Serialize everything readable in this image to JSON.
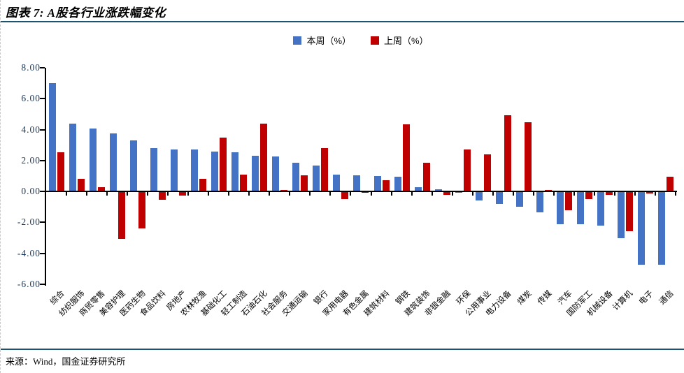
{
  "page": {
    "title": "图表 7: A股各行业涨跌幅变化",
    "source": "来源：Wind，国金证券研究所"
  },
  "chart_data": {
    "type": "bar",
    "title": "A股各行业涨跌幅变化",
    "categories": [
      "综合",
      "纺织服饰",
      "商贸零售",
      "美容护理",
      "医药生物",
      "食品饮料",
      "房地产",
      "农林牧渔",
      "基础化工",
      "轻工制造",
      "石油石化",
      "社会服务",
      "交通运输",
      "银行",
      "家用电器",
      "有色金属",
      "建筑材料",
      "钢铁",
      "建筑装饰",
      "非银金融",
      "环保",
      "公用事业",
      "电力设备",
      "煤炭",
      "传媒",
      "汽车",
      "国防军工",
      "机械设备",
      "计算机",
      "电子",
      "通信"
    ],
    "series": [
      {
        "name": "本周（%）",
        "color": "#4472C4",
        "values": [
          7.0,
          4.4,
          4.05,
          3.75,
          3.3,
          2.8,
          2.7,
          2.7,
          2.6,
          2.55,
          2.3,
          2.25,
          1.85,
          1.7,
          1.1,
          1.05,
          1.0,
          0.95,
          0.3,
          0.15,
          -0.1,
          -0.6,
          -0.8,
          -1.0,
          -1.35,
          -2.1,
          -2.1,
          -2.2,
          -3.0,
          -4.75,
          -4.75
        ]
      },
      {
        "name": "上周（%）",
        "color": "#C00000",
        "values": [
          2.55,
          0.8,
          0.3,
          -3.05,
          -2.4,
          -0.55,
          -0.25,
          0.8,
          3.5,
          1.1,
          4.4,
          0.1,
          1.05,
          2.8,
          -0.5,
          -0.1,
          0.75,
          4.35,
          1.85,
          -0.2,
          2.7,
          2.4,
          4.95,
          4.5,
          0.1,
          -1.2,
          -0.5,
          -0.2,
          -2.55,
          -0.15,
          0.95
        ]
      }
    ],
    "ylim": [
      -6,
      8
    ],
    "yticks": [
      8,
      6,
      4,
      2,
      0,
      -2,
      -4,
      -6
    ],
    "ytick_labels": [
      "8.00",
      "6.00",
      "4.00",
      "2.00",
      "0.00",
      "-2.00",
      "-4.00",
      "-6.00"
    ],
    "xlabel": "",
    "ylabel": "",
    "grid": false,
    "legend_position": "top-center"
  },
  "colors": {
    "series_this_week": "#4472C4",
    "series_last_week": "#C00000",
    "divider_rule": "#1C546F",
    "axis": "#000000",
    "ytick_text": "#17375E"
  }
}
